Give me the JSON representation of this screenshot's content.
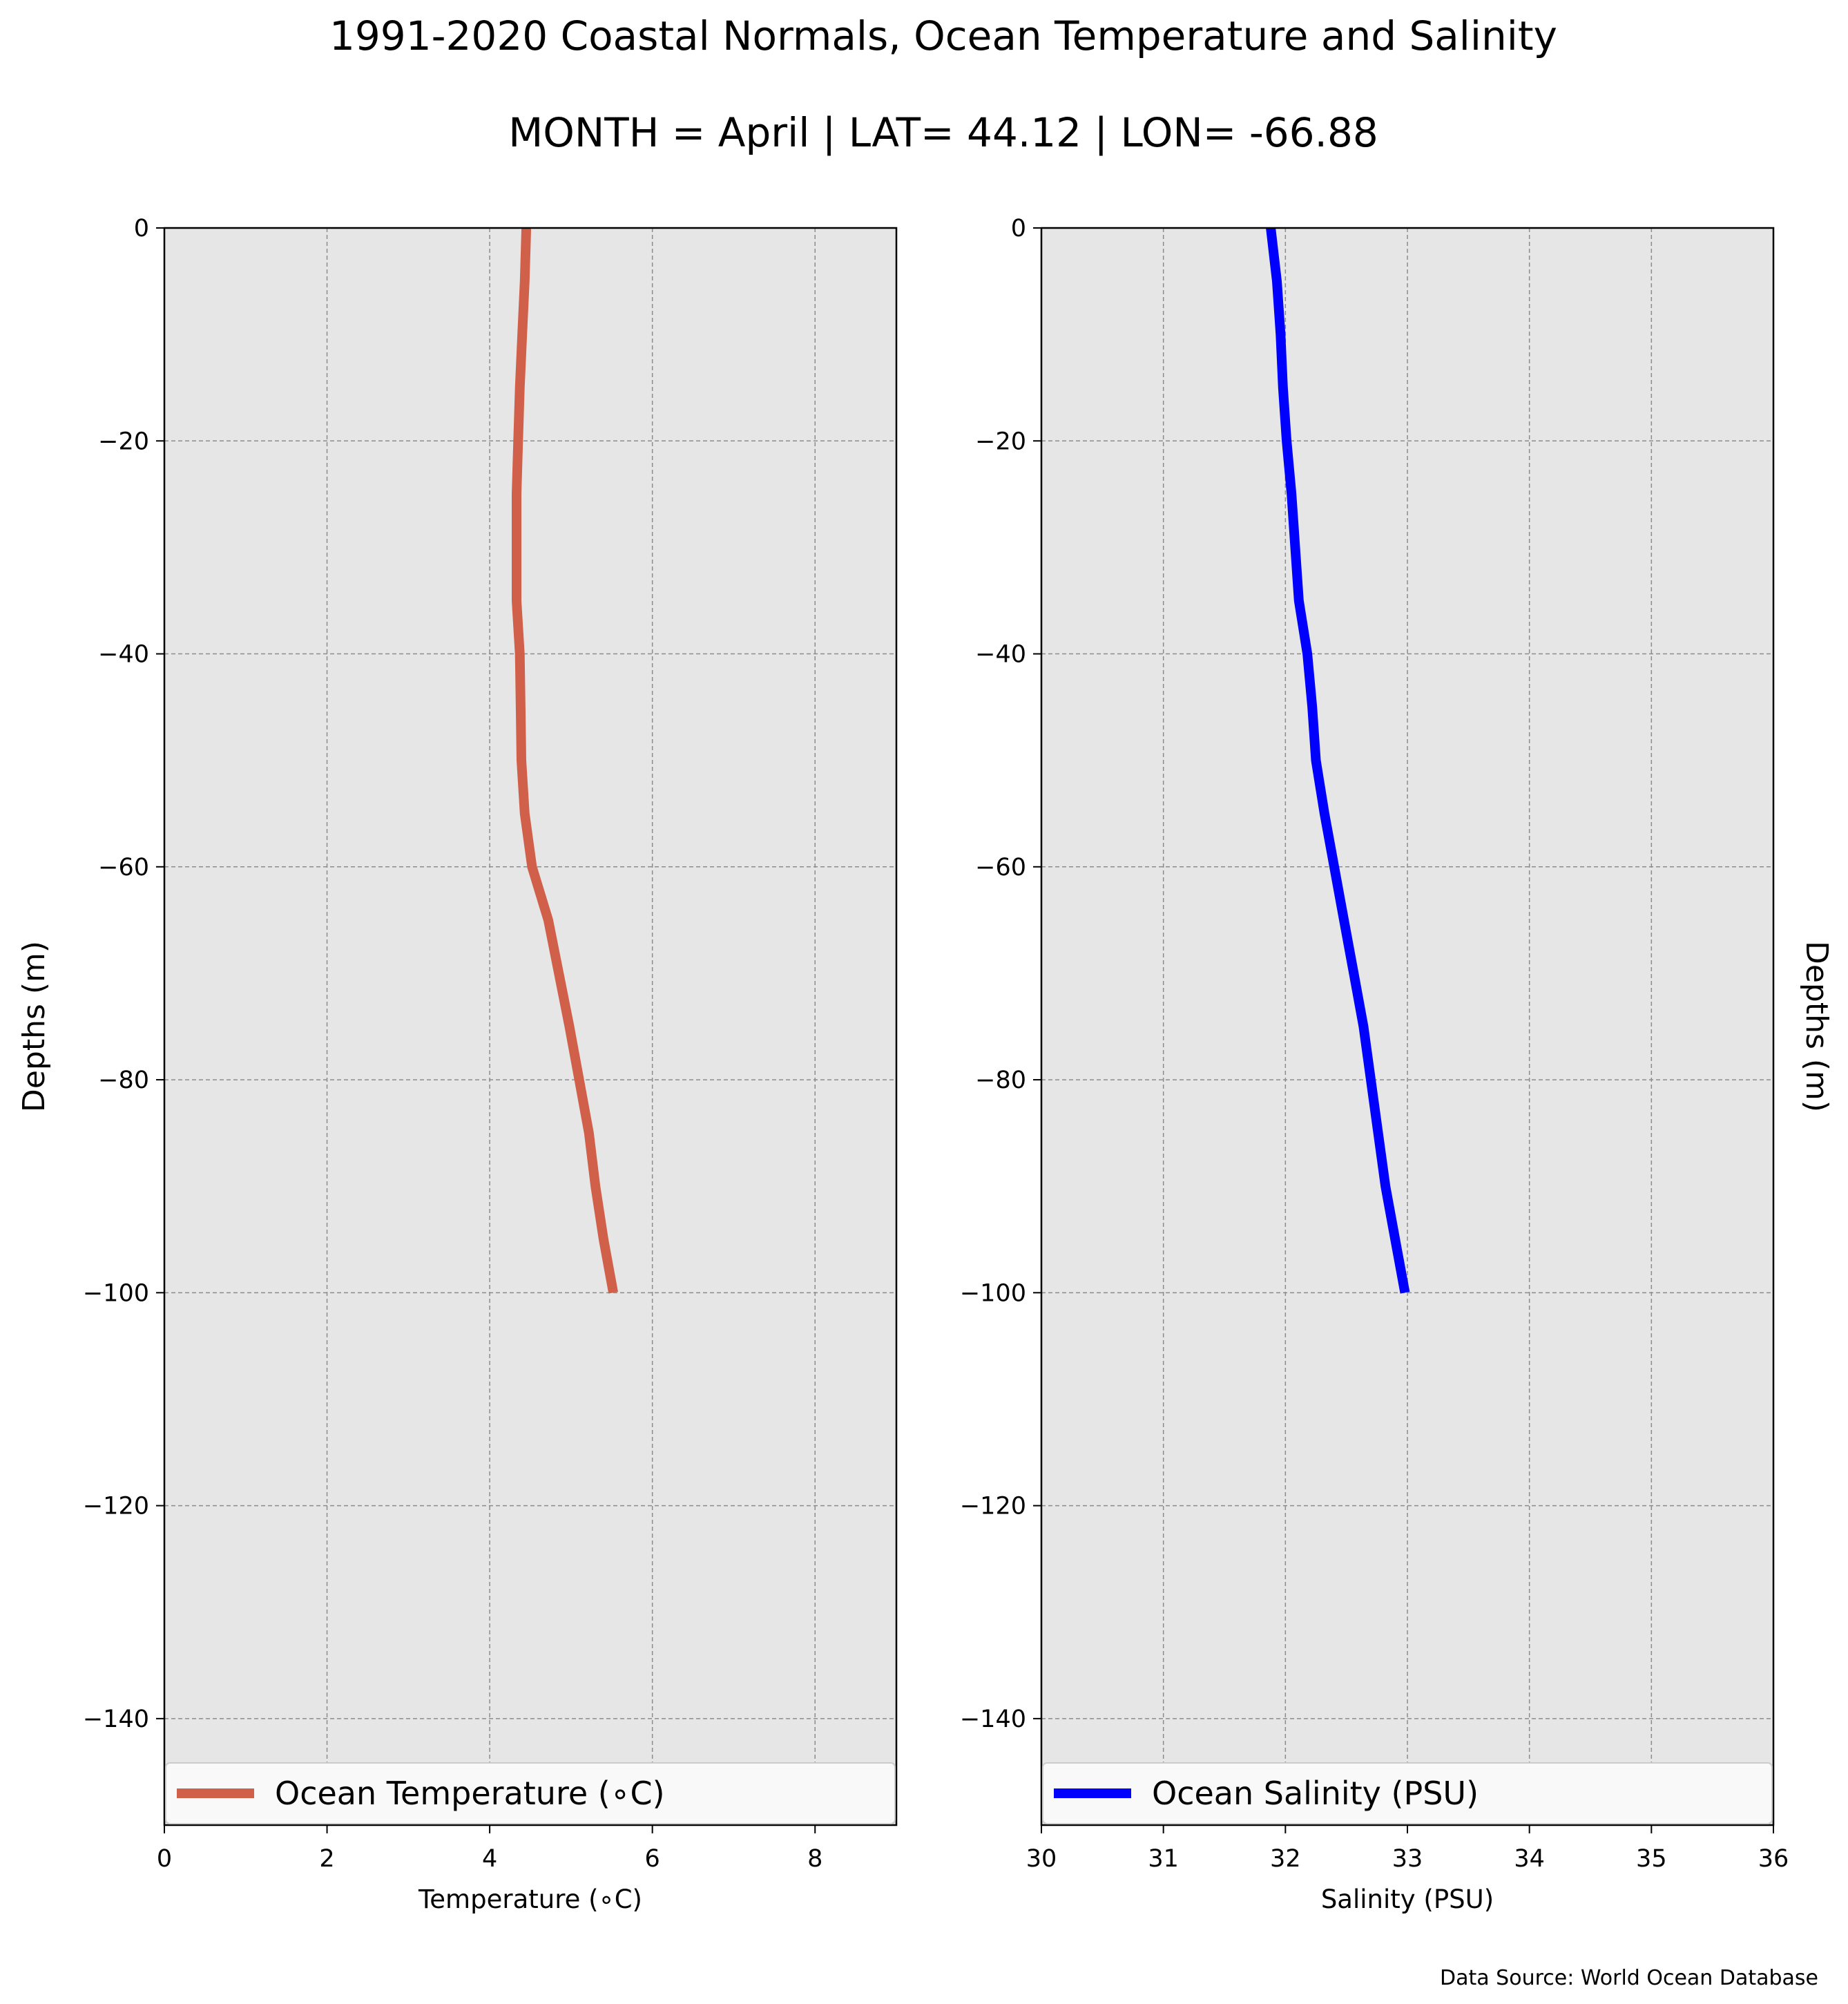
{
  "figure": {
    "title": "1991-2020 Coastal Normals, Ocean Temperature and Salinity",
    "subtitle": "MONTH = April | LAT= 44.12 | LON= -66.88",
    "source": "Data Source: World Ocean Database",
    "background": "#ffffff",
    "plot_background": "#e6e6e6",
    "grid_color": "#8c8c8c"
  },
  "chart_data": [
    {
      "type": "line",
      "xlabel": "Temperature (∘C)",
      "ylabel": "Depths (m)",
      "xlim": [
        0,
        9
      ],
      "ylim": [
        -150,
        0
      ],
      "xticks": [
        0,
        2,
        4,
        6,
        8
      ],
      "xticklabels": [
        "0",
        "2",
        "4",
        "6",
        "8"
      ],
      "yticks": [
        0,
        -20,
        -40,
        -60,
        -80,
        -100,
        -120,
        -140
      ],
      "yticklabels": [
        "0",
        "−20",
        "−40",
        "−60",
        "−80",
        "−100",
        "−120",
        "−140"
      ],
      "grid": true,
      "legend_position": "bottom",
      "ylabel_side": "left",
      "series": [
        {
          "name": "Ocean Temperature (∘C)",
          "color": "#d1604a",
          "x": [
            4.45,
            4.43,
            4.4,
            4.37,
            4.35,
            4.33,
            4.33,
            4.33,
            4.37,
            4.38,
            4.39,
            4.43,
            4.52,
            4.72,
            4.85,
            4.98,
            5.1,
            5.22,
            5.3,
            5.4,
            5.52
          ],
          "y": [
            0,
            -5,
            -10,
            -15,
            -20,
            -25,
            -30,
            -35,
            -40,
            -45,
            -50,
            -55,
            -60,
            -65,
            -70,
            -75,
            -80,
            -85,
            -90,
            -95,
            -100
          ]
        }
      ]
    },
    {
      "type": "line",
      "xlabel": "Salinity (PSU)",
      "ylabel": "Depths (m)",
      "xlim": [
        30,
        36
      ],
      "ylim": [
        -150,
        0
      ],
      "xticks": [
        30,
        31,
        32,
        33,
        34,
        35,
        36
      ],
      "xticklabels": [
        "30",
        "31",
        "32",
        "33",
        "34",
        "35",
        "36"
      ],
      "yticks": [
        0,
        -20,
        -40,
        -60,
        -80,
        -100,
        -120,
        -140
      ],
      "yticklabels": [
        "0",
        "−20",
        "−40",
        "−60",
        "−80",
        "−100",
        "−120",
        "−140"
      ],
      "grid": true,
      "legend_position": "bottom",
      "ylabel_side": "right",
      "series": [
        {
          "name": "Ocean Salinity (PSU)",
          "color": "#0000ff",
          "x": [
            31.88,
            31.93,
            31.96,
            31.98,
            32.01,
            32.05,
            32.08,
            32.11,
            32.18,
            32.22,
            32.25,
            32.32,
            32.4,
            32.48,
            32.56,
            32.64,
            32.7,
            32.76,
            32.82,
            32.9,
            32.98
          ],
          "y": [
            0,
            -5,
            -10,
            -15,
            -20,
            -25,
            -30,
            -35,
            -40,
            -45,
            -50,
            -55,
            -60,
            -65,
            -70,
            -75,
            -80,
            -85,
            -90,
            -95,
            -100
          ]
        }
      ]
    }
  ]
}
